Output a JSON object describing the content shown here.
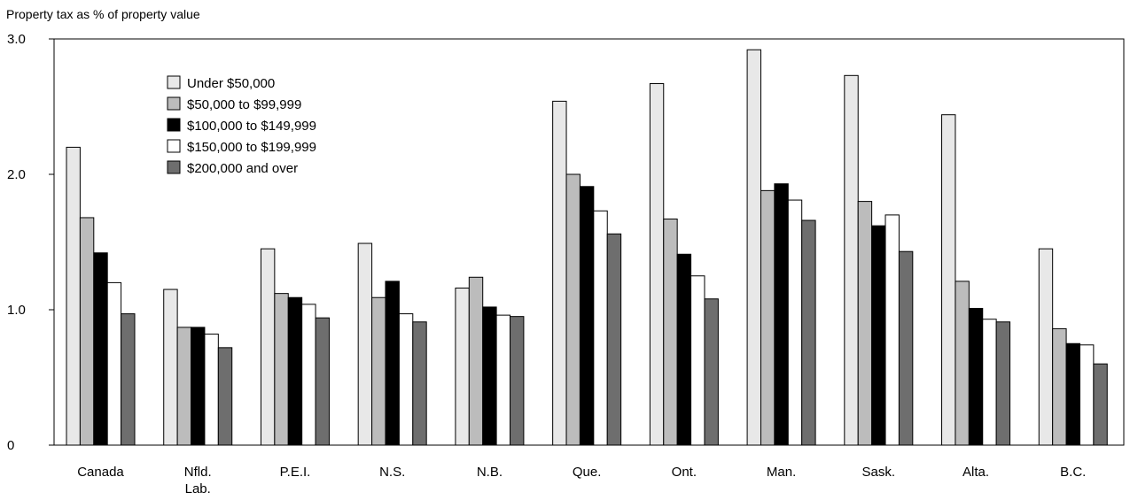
{
  "chart_data": {
    "type": "bar",
    "title": "",
    "ylabel": "Property tax as % of property value",
    "xlabel": "",
    "ylim": [
      0,
      3
    ],
    "yticks": [
      "0",
      "1.0",
      "2.0",
      "3.0"
    ],
    "ytick_values": [
      0,
      1,
      2,
      3
    ],
    "grid": false,
    "legend_position": "top-left",
    "categories": [
      [
        "Canada"
      ],
      [
        "Nfld.",
        "Lab."
      ],
      [
        "P.E.I."
      ],
      [
        "N.S."
      ],
      [
        "N.B."
      ],
      [
        "Que."
      ],
      [
        "Ont."
      ],
      [
        "Man."
      ],
      [
        "Sask."
      ],
      [
        "Alta."
      ],
      [
        "B.C."
      ]
    ],
    "series": [
      {
        "name": "Under $50,000",
        "color": "#e8e8e8",
        "values": [
          2.2,
          1.15,
          1.45,
          1.49,
          1.16,
          2.54,
          2.67,
          2.92,
          2.73,
          2.44,
          1.45
        ]
      },
      {
        "name": "$50,000 to $99,999",
        "color": "#bcbcbc",
        "values": [
          1.68,
          0.87,
          1.12,
          1.09,
          1.24,
          2.0,
          1.67,
          1.88,
          1.8,
          1.21,
          0.86
        ]
      },
      {
        "name": "$100,000 to $149,999",
        "color": "#000000",
        "values": [
          1.42,
          0.87,
          1.09,
          1.21,
          1.02,
          1.91,
          1.41,
          1.93,
          1.62,
          1.01,
          0.75
        ]
      },
      {
        "name": "$150,000 to $199,999",
        "color": "#ffffff",
        "values": [
          1.2,
          0.82,
          1.04,
          0.97,
          0.96,
          1.73,
          1.25,
          1.81,
          1.7,
          0.93,
          0.74
        ]
      },
      {
        "name": "$200,000 and over",
        "color": "#6e6e6e",
        "values": [
          0.97,
          0.72,
          0.94,
          0.91,
          0.95,
          1.56,
          1.08,
          1.66,
          1.43,
          0.91,
          0.6
        ]
      }
    ]
  }
}
